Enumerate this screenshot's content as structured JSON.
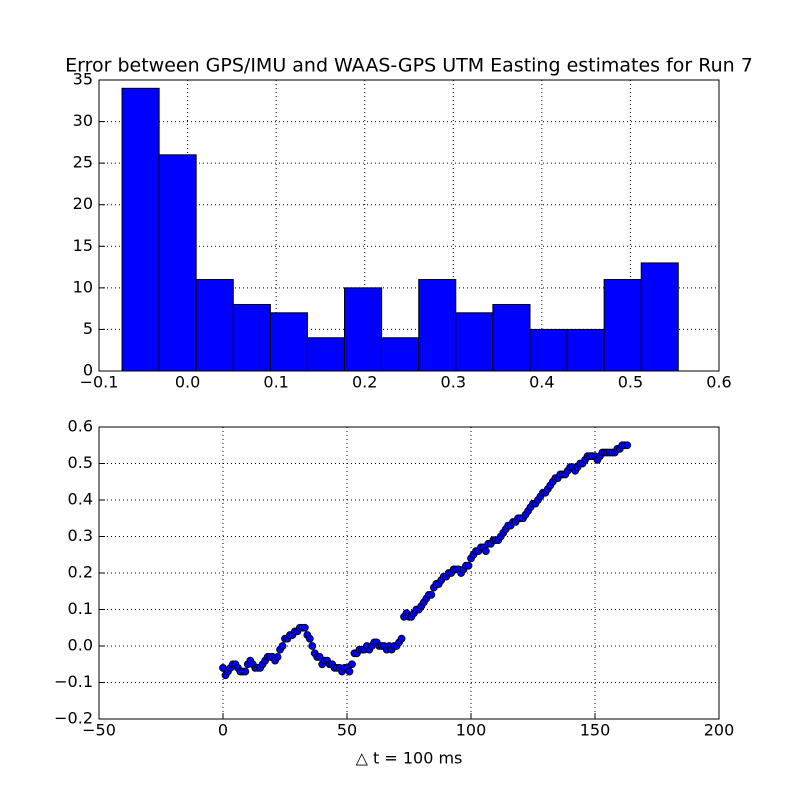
{
  "chart_data": [
    {
      "type": "histogram",
      "title": "Error between GPS/IMU and WAAS-GPS UTM Easting estimates for Run 7",
      "bins": [
        -0.074,
        -0.0321,
        0.0097,
        0.0516,
        0.0935,
        0.1353,
        0.1772,
        0.2191,
        0.261,
        0.3028,
        0.3447,
        0.3866,
        0.4284,
        0.4703,
        0.5122,
        0.554
      ],
      "values": [
        34,
        26,
        11,
        8,
        7,
        4,
        10,
        4,
        11,
        7,
        8,
        5,
        5,
        11,
        13
      ],
      "color": "#0000ff",
      "grid": true,
      "xlim": [
        -0.1,
        0.6
      ],
      "xticks": [
        {
          "value": -0.1,
          "label": "−0.1"
        },
        {
          "value": 0,
          "label": "0.0"
        },
        0.1,
        0.2,
        0.3,
        0.4,
        0.5,
        0.6
      ],
      "ylim": [
        0,
        35
      ],
      "yticks": [
        0,
        5,
        10,
        15,
        20,
        25,
        30,
        35
      ]
    },
    {
      "type": "scatter",
      "xlabel": "△ t = 100 ms",
      "color": "#0000ff",
      "grid": true,
      "x": [
        0,
        1,
        2,
        3,
        4,
        5,
        6,
        7,
        8,
        9,
        10,
        11,
        12,
        13,
        14,
        15,
        16,
        17,
        18,
        19,
        20,
        21,
        22,
        23,
        24,
        25,
        26,
        27,
        28,
        29,
        30,
        31,
        32,
        33,
        34,
        35,
        36,
        37,
        38,
        39,
        40,
        41,
        42,
        43,
        44,
        45,
        46,
        47,
        48,
        49,
        50,
        51,
        52,
        53,
        54,
        55,
        56,
        57,
        58,
        59,
        60,
        61,
        62,
        63,
        64,
        65,
        66,
        67,
        68,
        69,
        70,
        71,
        72,
        73,
        74,
        75,
        76,
        77,
        78,
        79,
        80,
        81,
        82,
        83,
        84,
        85,
        86,
        87,
        88,
        89,
        90,
        91,
        92,
        93,
        94,
        95,
        96,
        97,
        98,
        99,
        100,
        101,
        102,
        103,
        104,
        105,
        106,
        107,
        108,
        109,
        110,
        111,
        112,
        113,
        114,
        115,
        116,
        117,
        118,
        119,
        120,
        121,
        122,
        123,
        124,
        125,
        126,
        127,
        128,
        129,
        130,
        131,
        132,
        133,
        134,
        135,
        136,
        137,
        138,
        139,
        140,
        141,
        142,
        143,
        144,
        145,
        146,
        147,
        148,
        149,
        150,
        151,
        152,
        153,
        154,
        155,
        156,
        157,
        158,
        159,
        160,
        161,
        162,
        163
      ],
      "values": [
        -0.06,
        -0.08,
        -0.07,
        -0.06,
        -0.05,
        -0.05,
        -0.06,
        -0.07,
        -0.07,
        -0.07,
        -0.05,
        -0.04,
        -0.05,
        -0.06,
        -0.06,
        -0.06,
        -0.05,
        -0.04,
        -0.03,
        -0.03,
        -0.03,
        -0.04,
        -0.03,
        -0.01,
        0.0,
        0.02,
        0.02,
        0.03,
        0.03,
        0.04,
        0.04,
        0.05,
        0.05,
        0.05,
        0.03,
        0.02,
        0.0,
        -0.02,
        -0.03,
        -0.03,
        -0.05,
        -0.04,
        -0.04,
        -0.05,
        -0.05,
        -0.06,
        -0.06,
        -0.06,
        -0.07,
        -0.06,
        -0.06,
        -0.07,
        -0.05,
        -0.02,
        -0.02,
        -0.01,
        -0.01,
        -0.01,
        0.0,
        -0.01,
        0.0,
        0.01,
        0.01,
        0.0,
        0.0,
        0.0,
        -0.01,
        0.0,
        -0.01,
        0.0,
        0.0,
        0.01,
        0.02,
        0.08,
        0.09,
        0.08,
        0.08,
        0.09,
        0.1,
        0.1,
        0.11,
        0.12,
        0.13,
        0.14,
        0.14,
        0.16,
        0.17,
        0.17,
        0.18,
        0.19,
        0.19,
        0.2,
        0.2,
        0.21,
        0.21,
        0.21,
        0.2,
        0.21,
        0.22,
        0.22,
        0.24,
        0.25,
        0.26,
        0.26,
        0.27,
        0.27,
        0.26,
        0.28,
        0.28,
        0.29,
        0.29,
        0.29,
        0.3,
        0.31,
        0.32,
        0.33,
        0.33,
        0.34,
        0.34,
        0.35,
        0.35,
        0.35,
        0.36,
        0.37,
        0.38,
        0.39,
        0.39,
        0.4,
        0.41,
        0.42,
        0.42,
        0.43,
        0.44,
        0.45,
        0.46,
        0.46,
        0.47,
        0.47,
        0.47,
        0.48,
        0.49,
        0.49,
        0.48,
        0.49,
        0.5,
        0.5,
        0.51,
        0.52,
        0.52,
        0.52,
        0.52,
        0.51,
        0.52,
        0.53,
        0.53,
        0.53,
        0.53,
        0.53,
        0.53,
        0.54,
        0.54,
        0.55,
        0.55,
        0.55
      ],
      "xlim": [
        -50,
        200
      ],
      "xticks": [
        {
          "value": -50,
          "label": "−50"
        },
        0,
        50,
        100,
        150,
        200
      ],
      "ylim": [
        -0.2,
        0.6
      ],
      "yticks": [
        {
          "value": -0.2,
          "label": "−0.2"
        },
        {
          "value": -0.1,
          "label": "−0.1"
        },
        {
          "value": 0,
          "label": "0.0"
        },
        0.1,
        0.2,
        0.3,
        0.4,
        0.5,
        0.6
      ]
    }
  ]
}
